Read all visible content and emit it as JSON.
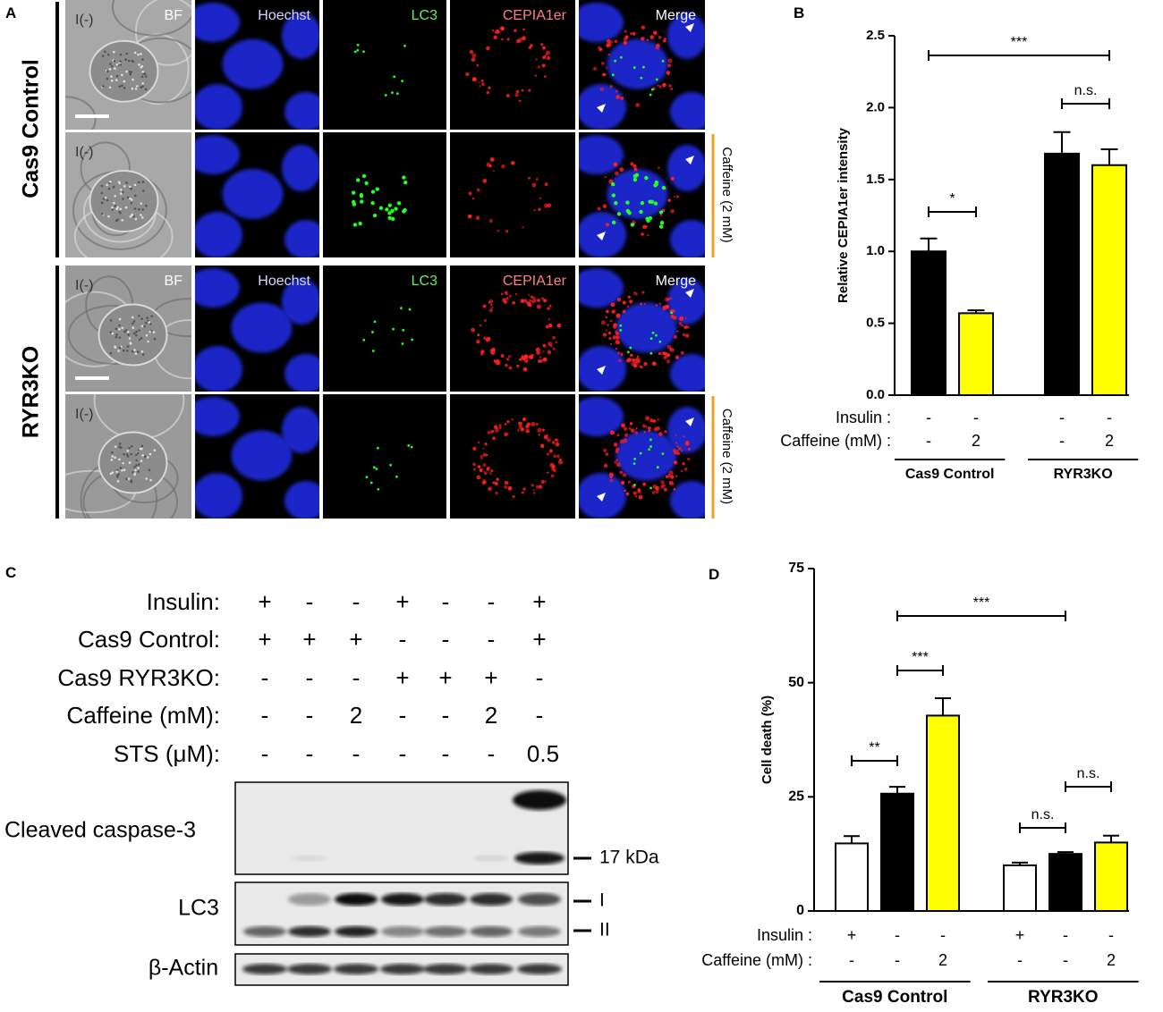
{
  "panel_a": {
    "label": "A",
    "columns": [
      "BF",
      "Hoechst",
      "LC3",
      "CEPIA1er",
      "Merge"
    ],
    "groups": [
      {
        "name": "Cas9 Control",
        "rows": [
          "I(-)",
          "I(-)"
        ],
        "treatment": "Caffeine (2 mM)"
      },
      {
        "name": "RYR3KO",
        "rows": [
          "I(-)",
          "I(-)"
        ],
        "treatment": "Caffeine (2 mM)"
      }
    ]
  },
  "chart_data": [
    {
      "type": "bar",
      "label": "B",
      "ylabel": "Relative CEPIA1er intensity",
      "ylim": [
        0,
        2.5
      ],
      "yticks": [
        {
          "value": 0,
          "label": "0.0"
        },
        0.5,
        {
          "value": 1,
          "label": "1.0"
        },
        1.5,
        {
          "value": 2,
          "label": "2.0"
        },
        2.5
      ],
      "condition_labels": [
        "Insulin :",
        "Caffeine (mM) :"
      ],
      "groups": [
        {
          "name": "Cas9 Control",
          "values": [
            1.0,
            0.57
          ],
          "errors": [
            0.09,
            0.02
          ],
          "colors": [
            "#000000",
            "#ffff00"
          ],
          "conditions": [
            [
              "-",
              "-"
            ],
            [
              "-",
              "2"
            ]
          ]
        },
        {
          "name": "RYR3KO",
          "values": [
            1.68,
            1.6
          ],
          "errors": [
            0.15,
            0.11
          ],
          "colors": [
            "#000000",
            "#ffff00"
          ],
          "conditions": [
            [
              "-",
              "-"
            ],
            [
              "-",
              "2"
            ]
          ]
        }
      ],
      "annotations": [
        "***",
        "n.s.",
        "*"
      ]
    },
    {
      "type": "bar",
      "label": "D",
      "ylabel": "Cell death  (%)",
      "ylim": [
        0,
        75
      ],
      "yticks": [
        0,
        25,
        50,
        75
      ],
      "condition_labels": [
        "Insulin :",
        "Caffeine (mM) :"
      ],
      "groups": [
        {
          "name": "Cas9 Control",
          "values": [
            14.8,
            25.7,
            42.8
          ],
          "errors": [
            1.6,
            1.5,
            3.8
          ],
          "colors": [
            "#ffffff",
            "#000000",
            "#ffff00"
          ],
          "conditions": [
            [
              "+",
              "-",
              "-"
            ],
            [
              "-",
              "-",
              "2"
            ]
          ]
        },
        {
          "name": "RYR3KO",
          "values": [
            10.0,
            12.5,
            15.0
          ],
          "errors": [
            0.6,
            0.4,
            1.5
          ],
          "colors": [
            "#ffffff",
            "#000000",
            "#ffff00"
          ],
          "conditions": [
            [
              "+",
              "-",
              "-"
            ],
            [
              "-",
              "-",
              "2"
            ]
          ]
        }
      ],
      "annotations": [
        "***",
        "***",
        "**",
        "n.s.",
        "n.s."
      ]
    }
  ],
  "panel_c": {
    "label": "C",
    "conditions": [
      {
        "label": "Insulin:",
        "values": [
          "+",
          "-",
          "-",
          "+",
          "-",
          "-",
          "+"
        ]
      },
      {
        "label": "Cas9 Control:",
        "values": [
          "+",
          "+",
          "+",
          "-",
          "-",
          "-",
          "+"
        ]
      },
      {
        "label": "Cas9 RYR3KO:",
        "values": [
          "-",
          "-",
          "-",
          "+",
          "+",
          "+",
          "-"
        ]
      },
      {
        "label": "Caffeine (mM):",
        "values": [
          "-",
          "-",
          "2",
          "-",
          "-",
          "2",
          "-"
        ]
      },
      {
        "label": "STS (μM):",
        "values": [
          "-",
          "-",
          "-",
          "-",
          "-",
          "-",
          "0.5"
        ]
      }
    ],
    "blots": [
      {
        "label": "Cleaved caspase-3",
        "markers": [
          "17 kDa"
        ]
      },
      {
        "label": "LC3",
        "markers": [
          "I",
          "II"
        ]
      },
      {
        "label": "β-Actin"
      }
    ]
  }
}
